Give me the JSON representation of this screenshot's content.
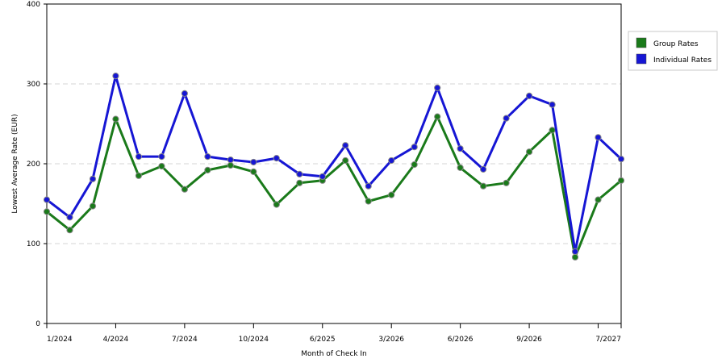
{
  "chart_data": {
    "type": "line",
    "title": "",
    "xlabel": "Month of Check In",
    "ylabel": "Lowest Average Rate (EUR)",
    "ylim": [
      0,
      400
    ],
    "yticks": [
      0,
      100,
      200,
      300,
      400
    ],
    "grid": "horizontal dashed",
    "legend_position": "right",
    "x_tick_labels": [
      "1/2024",
      "4/2024",
      "7/2024",
      "10/2024",
      "6/2025",
      "3/2026",
      "6/2026",
      "9/2026",
      "",
      "7/2027"
    ],
    "x_tick_indices": [
      0,
      3,
      6,
      9,
      12,
      15,
      18,
      21,
      24,
      25
    ],
    "series": [
      {
        "name": "Group Rates",
        "color": "#1a7a1a",
        "values": [
          140,
          117,
          147,
          256,
          185,
          197,
          168,
          192,
          198,
          190,
          149,
          176,
          179,
          204,
          153,
          161,
          199,
          259,
          195,
          172,
          176,
          215,
          242,
          83,
          155,
          179
        ]
      },
      {
        "name": "Individual Rates",
        "color": "#1616d4",
        "values": [
          155,
          133,
          181,
          310,
          209,
          209,
          288,
          209,
          205,
          202,
          207,
          187,
          184,
          223,
          172,
          204,
          221,
          295,
          219,
          193,
          257,
          285,
          274,
          90,
          233,
          206
        ]
      }
    ]
  }
}
